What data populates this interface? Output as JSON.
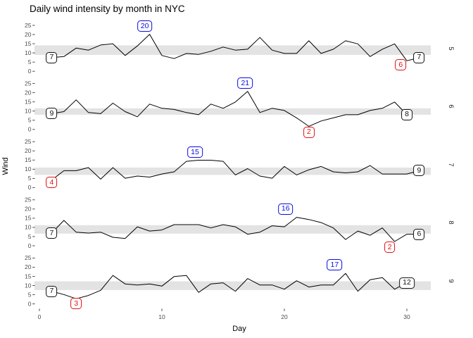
{
  "title": "Daily wind intensity by month in NYC",
  "xlabel": "Day",
  "ylabel": "Wind",
  "colors": {
    "line": "#000000",
    "band": "#e3e3e3",
    "blue": "#0b0be0",
    "red": "#e01212",
    "label_black": "#111111",
    "tick_text": "#4d4d4d",
    "tick_mark": "#333333"
  },
  "chart_data": {
    "type": "line",
    "title": "Daily wind intensity by month in NYC",
    "xlabel": "Day",
    "ylabel": "Wind",
    "facet": "month, strip labels on right",
    "x_ticks": [
      0,
      10,
      20,
      30
    ],
    "y_ticks": [
      0,
      5,
      10,
      15,
      20,
      25
    ],
    "xlim": [
      0,
      31
    ],
    "ylim": [
      0,
      27
    ],
    "grid": false,
    "band_note": "gray horizontal band per panel = interquartile range of that month",
    "months": [
      {
        "strip": "5",
        "band": [
          8.9,
          14.1
        ],
        "values": [
          7.4,
          8.0,
          12.6,
          11.5,
          14.3,
          14.9,
          8.6,
          13.8,
          20.1,
          8.6,
          6.9,
          9.7,
          9.2,
          10.9,
          13.2,
          11.5,
          12.0,
          18.4,
          11.5,
          9.7,
          9.7,
          16.6,
          9.7,
          12.0,
          16.6,
          14.9,
          8.0,
          12.0,
          14.9,
          5.7,
          7.4
        ],
        "labels": [
          {
            "role": "first",
            "day": 1,
            "value": 7.4,
            "text": "7",
            "color": "black",
            "dx": 0,
            "dy": 0
          },
          {
            "role": "max",
            "day": 9,
            "value": 20.1,
            "text": "20",
            "color": "blue",
            "dx": -0.4,
            "dy": 4.5
          },
          {
            "role": "min",
            "day": 30,
            "value": 5.7,
            "text": "6",
            "color": "red",
            "dx": -0.5,
            "dy": -2.3
          },
          {
            "role": "last",
            "day": 31,
            "value": 7.4,
            "text": "7",
            "color": "black",
            "dx": 0,
            "dy": 0
          }
        ]
      },
      {
        "strip": "6",
        "band": [
          8.0,
          11.5
        ],
        "values": [
          8.6,
          9.7,
          16.1,
          9.2,
          8.6,
          14.3,
          9.7,
          6.9,
          13.8,
          11.5,
          10.9,
          9.2,
          8.0,
          13.8,
          11.5,
          14.9,
          20.7,
          9.2,
          11.5,
          10.3,
          6.3,
          1.7,
          4.6,
          6.3,
          8.0,
          8.0,
          10.3,
          11.5,
          14.9,
          8.0
        ],
        "labels": [
          {
            "role": "first",
            "day": 1,
            "value": 8.6,
            "text": "9",
            "color": "black",
            "dx": 0,
            "dy": 0
          },
          {
            "role": "max",
            "day": 17,
            "value": 20.7,
            "text": "21",
            "color": "blue",
            "dx": -0.2,
            "dy": 4.5
          },
          {
            "role": "min",
            "day": 22,
            "value": 1.7,
            "text": "2",
            "color": "red",
            "dx": 0,
            "dy": -3.3
          },
          {
            "role": "last",
            "day": 30,
            "value": 8.0,
            "text": "8",
            "color": "black",
            "dx": 0,
            "dy": 0
          }
        ]
      },
      {
        "strip": "7",
        "band": [
          6.9,
          10.9
        ],
        "values": [
          4.1,
          9.2,
          9.2,
          10.9,
          4.6,
          10.9,
          5.1,
          6.3,
          5.7,
          7.4,
          8.6,
          14.3,
          14.9,
          14.9,
          14.3,
          6.9,
          10.3,
          6.3,
          5.1,
          11.5,
          6.9,
          9.7,
          11.5,
          8.6,
          8.0,
          8.6,
          12.0,
          7.4,
          7.4,
          7.4,
          9.2
        ],
        "labels": [
          {
            "role": "first-min",
            "day": 1,
            "value": 4.1,
            "text": "4",
            "color": "red",
            "dx": 0,
            "dy": -1.4
          },
          {
            "role": "max",
            "day": 13,
            "value": 14.9,
            "text": "15",
            "color": "blue",
            "dx": -0.3,
            "dy": 4.3
          },
          {
            "role": "last",
            "day": 31,
            "value": 9.2,
            "text": "9",
            "color": "black",
            "dx": 0,
            "dy": 0
          }
        ]
      },
      {
        "strip": "8",
        "band": [
          6.6,
          11.2
        ],
        "values": [
          6.9,
          13.8,
          7.4,
          6.9,
          7.4,
          4.6,
          4.0,
          10.3,
          8.0,
          8.6,
          11.5,
          11.5,
          11.5,
          9.7,
          11.5,
          10.3,
          6.3,
          7.4,
          10.9,
          10.3,
          15.5,
          14.3,
          12.6,
          9.7,
          3.4,
          8.0,
          5.7,
          9.7,
          2.3,
          6.3,
          6.3
        ],
        "labels": [
          {
            "role": "first",
            "day": 1,
            "value": 6.9,
            "text": "7",
            "color": "black",
            "dx": 0,
            "dy": 0
          },
          {
            "role": "max",
            "day": 21,
            "value": 15.5,
            "text": "16",
            "color": "blue",
            "dx": -0.9,
            "dy": 4.5
          },
          {
            "role": "min",
            "day": 29,
            "value": 2.3,
            "text": "2",
            "color": "red",
            "dx": -0.4,
            "dy": -3.2
          },
          {
            "role": "last",
            "day": 31,
            "value": 6.3,
            "text": "6",
            "color": "black",
            "dx": 0,
            "dy": 0
          }
        ]
      },
      {
        "strip": "9",
        "band": [
          7.55,
          12.3
        ],
        "values": [
          6.9,
          5.1,
          2.8,
          4.6,
          7.4,
          15.5,
          10.9,
          10.3,
          10.9,
          9.7,
          14.9,
          15.5,
          6.3,
          10.9,
          11.5,
          6.9,
          13.8,
          10.3,
          10.3,
          8.0,
          12.6,
          9.2,
          10.3,
          10.3,
          16.6,
          6.9,
          13.2,
          14.3,
          8.0,
          11.5
        ],
        "labels": [
          {
            "role": "first",
            "day": 1,
            "value": 6.9,
            "text": "7",
            "color": "black",
            "dx": 0,
            "dy": 0
          },
          {
            "role": "min",
            "day": 3,
            "value": 2.8,
            "text": "3",
            "color": "red",
            "dx": 0,
            "dy": -2.7
          },
          {
            "role": "max",
            "day": 25,
            "value": 16.6,
            "text": "17",
            "color": "blue",
            "dx": -0.9,
            "dy": 4.7
          },
          {
            "role": "last",
            "day": 30,
            "value": 11.5,
            "text": "12",
            "color": "black",
            "dx": 0,
            "dy": 0
          }
        ]
      }
    ]
  }
}
